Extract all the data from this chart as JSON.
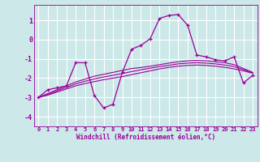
{
  "xlabel": "Windchill (Refroidissement éolien,°C)",
  "bg_color": "#cce8e8",
  "grid_color": "#ffffff",
  "line_color": "#990099",
  "xlim": [
    -0.5,
    23.5
  ],
  "ylim": [
    -4.5,
    1.8
  ],
  "yticks": [
    -4,
    -3,
    -2,
    -1,
    0,
    1
  ],
  "xticks": [
    0,
    1,
    2,
    3,
    4,
    5,
    6,
    7,
    8,
    9,
    10,
    11,
    12,
    13,
    14,
    15,
    16,
    17,
    18,
    19,
    20,
    21,
    22,
    23
  ],
  "series1_x": [
    0,
    1,
    2,
    3,
    4,
    5,
    6,
    7,
    8,
    9,
    10,
    11,
    12,
    13,
    14,
    15,
    16,
    17,
    18,
    19,
    20,
    21,
    22,
    23
  ],
  "series1_y": [
    -3.0,
    -2.6,
    -2.5,
    -2.4,
    -1.2,
    -1.2,
    -2.9,
    -3.55,
    -3.35,
    -1.7,
    -0.5,
    -0.3,
    0.05,
    1.1,
    1.25,
    1.3,
    0.75,
    -0.8,
    -0.9,
    -1.05,
    -1.1,
    -0.9,
    -2.25,
    -1.85
  ],
  "series2_x": [
    0,
    1,
    2,
    3,
    4,
    5,
    6,
    7,
    8,
    9,
    10,
    11,
    12,
    13,
    14,
    15,
    16,
    17,
    18,
    19,
    20,
    21,
    22,
    23
  ],
  "series2_y": [
    -3.0,
    -2.8,
    -2.6,
    -2.4,
    -2.2,
    -2.05,
    -1.9,
    -1.8,
    -1.7,
    -1.6,
    -1.5,
    -1.45,
    -1.38,
    -1.3,
    -1.22,
    -1.15,
    -1.1,
    -1.08,
    -1.1,
    -1.15,
    -1.2,
    -1.3,
    -1.5,
    -1.7
  ],
  "series3_x": [
    0,
    1,
    2,
    3,
    4,
    5,
    6,
    7,
    8,
    9,
    10,
    11,
    12,
    13,
    14,
    15,
    16,
    17,
    18,
    19,
    20,
    21,
    22,
    23
  ],
  "series3_y": [
    -3.0,
    -2.88,
    -2.72,
    -2.56,
    -2.4,
    -2.28,
    -2.18,
    -2.08,
    -2.0,
    -1.92,
    -1.82,
    -1.72,
    -1.62,
    -1.52,
    -1.44,
    -1.38,
    -1.34,
    -1.32,
    -1.34,
    -1.38,
    -1.44,
    -1.52,
    -1.62,
    -1.75
  ],
  "series4_x": [
    0,
    1,
    2,
    3,
    4,
    5,
    6,
    7,
    8,
    9,
    10,
    11,
    12,
    13,
    14,
    15,
    16,
    17,
    18,
    19,
    20,
    21,
    22,
    23
  ],
  "series4_y": [
    -3.0,
    -2.84,
    -2.66,
    -2.48,
    -2.3,
    -2.16,
    -2.04,
    -1.94,
    -1.85,
    -1.76,
    -1.66,
    -1.57,
    -1.48,
    -1.4,
    -1.33,
    -1.26,
    -1.22,
    -1.2,
    -1.22,
    -1.26,
    -1.32,
    -1.4,
    -1.56,
    -1.72
  ]
}
